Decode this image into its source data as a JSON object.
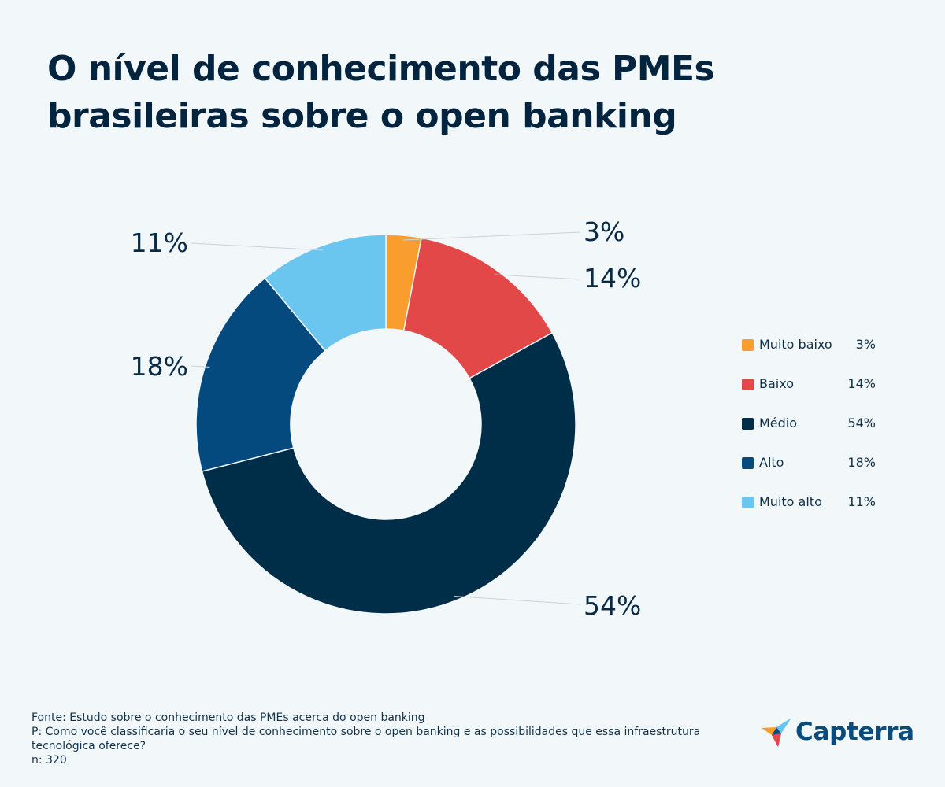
{
  "chart_data": {
    "type": "pie",
    "variant": "donut",
    "title": "O nível de conhecimento das PMEs brasileiras sobre o open banking",
    "categories": [
      "Muito baixo",
      "Baixo",
      "Médio",
      "Alto",
      "Muito alto"
    ],
    "values": [
      3,
      14,
      54,
      18,
      11
    ],
    "labels": [
      "3%",
      "14%",
      "54%",
      "18%",
      "11%"
    ],
    "colors": [
      "#f99d2e",
      "#e34848",
      "#002d47",
      "#054a7e",
      "#6ac5ef"
    ],
    "legend_position": "right"
  },
  "legend": [
    {
      "label": "Muito baixo",
      "value": "3%"
    },
    {
      "label": "Baixo",
      "value": "14%"
    },
    {
      "label": "Médio",
      "value": "54%"
    },
    {
      "label": "Alto",
      "value": "18%"
    },
    {
      "label": "Muito alto",
      "value": "11%"
    }
  ],
  "footer": {
    "source": "Fonte: Estudo sobre o conhecimento das PMEs acerca do open banking",
    "question": "P: Como você classificaria o seu nível de conhecimento sobre o open banking e as possibilidades que essa infraestrutura tecnológica oferece?",
    "sample": "n: 320"
  },
  "brand": {
    "name": "Capterra",
    "icon": "capterra-arrow-icon"
  }
}
